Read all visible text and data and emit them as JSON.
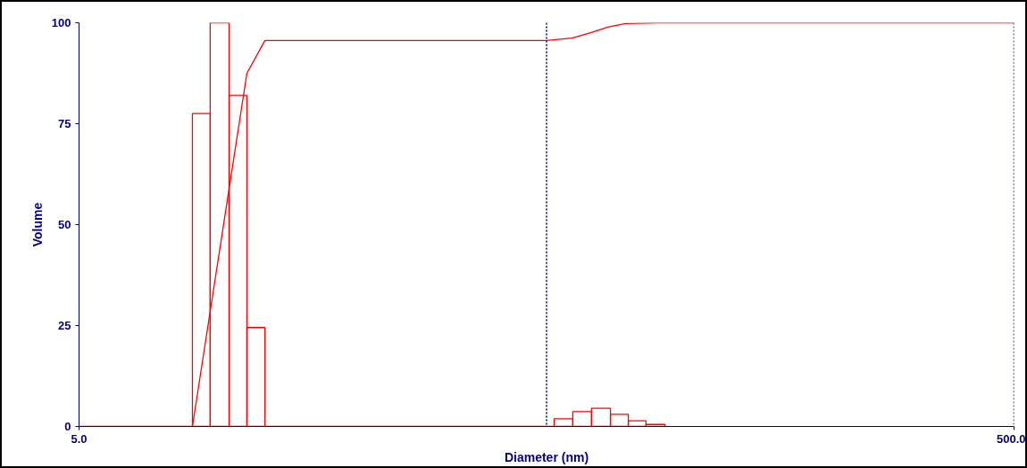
{
  "chart_data": {
    "type": "histogram",
    "xlabel": "Diameter (nm)",
    "ylabel": "Volume",
    "log": "x",
    "grid": false,
    "bins": [
      8.74,
      9.54,
      10.47,
      11.43,
      12.49,
      51.9,
      56.9,
      62.4,
      68.5,
      74.8,
      81.6,
      89.6
    ],
    "values": [
      77.5,
      100,
      82,
      24.5,
      0,
      1.9,
      3.7,
      4.5,
      3.0,
      1.4,
      0.5
    ],
    "color": "#ff0000",
    "series": [
      {
        "type": "line",
        "color": "#ff0000",
        "x": [
          5,
          8.74,
          11.43,
          12.49,
          50,
          56.7,
          61.9,
          67.6,
          73.8,
          86.1,
          500
        ],
        "values": [
          0,
          0,
          87.5,
          95.6,
          95.6,
          96.2,
          97.5,
          98.9,
          99.8,
          100,
          100
        ]
      }
    ],
    "xlim": [
      5,
      500
    ],
    "xticks": [
      {
        "value": 5,
        "label": "5.0"
      },
      {
        "value": 500,
        "label": "500.0"
      }
    ],
    "ylim": [
      0,
      100
    ],
    "yticks": [
      0,
      25,
      50,
      75,
      100
    ],
    "ref_lines": [
      {
        "axis": "x",
        "value": 50,
        "color": "#000080",
        "line_style": "dotted"
      },
      {
        "axis": "x",
        "value": 500,
        "color": "#000080",
        "line_style": "dotted"
      }
    ]
  }
}
